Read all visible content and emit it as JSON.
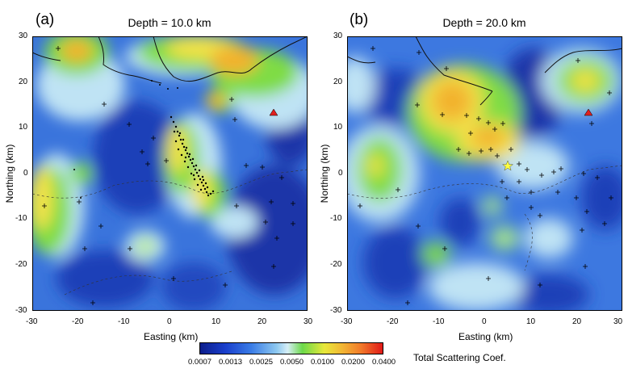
{
  "panels": [
    {
      "label": "(a)",
      "title": "Depth = 10.0 km",
      "xlabel": "Easting (km)",
      "ylabel": "Northing (km)",
      "xticks": [
        "-30",
        "-20",
        "-10",
        "0",
        "10",
        "20",
        "30"
      ],
      "yticks": [
        "30",
        "20",
        "10",
        "0",
        "-10",
        "-20",
        "-30"
      ]
    },
    {
      "label": "(b)",
      "title": "Depth = 20.0 km",
      "xlabel": "Easting (km)",
      "ylabel": "Northing (km)",
      "xticks": [
        "-30",
        "-20",
        "-10",
        "0",
        "10",
        "20",
        "30"
      ],
      "yticks": [
        "30",
        "20",
        "10",
        "0",
        "-10",
        "-20",
        "-30"
      ]
    }
  ],
  "colorbar": {
    "title": "Total Scattering Coef.",
    "ticks": [
      "0.0007",
      "0.0013",
      "0.0025",
      "0.0050",
      "0.0100",
      "0.0200",
      "0.0400"
    ],
    "colors": [
      "#102090",
      "#1a3fcc",
      "#3a7ce6",
      "#6fb3f0",
      "#bde6f5",
      "#6cd94a",
      "#f2e63a",
      "#f2b534",
      "#f27a2a",
      "#e02020"
    ]
  },
  "colors": {
    "deep_blue": "#1c3fb8",
    "mid_blue": "#3d78e0",
    "light_blue": "#bfe3f4",
    "green": "#7fdc45",
    "yellow": "#f3e24a",
    "orange": "#f2b22e",
    "volcano": "#e02020",
    "star": "#ffff40"
  },
  "icons": {
    "station": "plus-marker",
    "volcano": "red-triangle",
    "epicenter": "yellow-star"
  }
}
